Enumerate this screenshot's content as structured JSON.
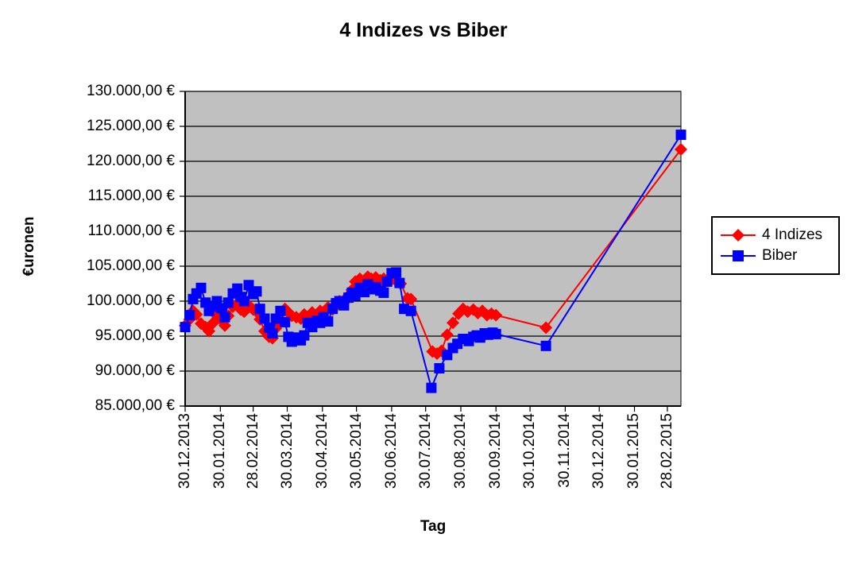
{
  "chart_data": {
    "type": "line",
    "title": "4 Indizes vs Biber",
    "xlabel": "Tag",
    "ylabel": "€uronen",
    "plot": {
      "background": "#c0c0c0",
      "gridlines": "horizontal",
      "gridline_color": "#000000"
    },
    "y_axis": {
      "min": 85000,
      "max": 130000,
      "step": 5000,
      "tick_labels": [
        "85.000,00 €",
        "90.000,00 €",
        "95.000,00 €",
        "100.000,00 €",
        "105.000,00 €",
        "110.000,00 €",
        "115.000,00 €",
        "120.000,00 €",
        "125.000,00 €",
        "130.000,00 €"
      ]
    },
    "x_axis": {
      "tick_labels": [
        "30.12.2013",
        "30.01.2014",
        "28.02.2014",
        "30.03.2014",
        "30.04.2014",
        "30.05.2014",
        "30.06.2014",
        "30.07.2014",
        "30.08.2014",
        "30.09.2014",
        "30.10.2014",
        "30.11.2014",
        "30.12.2014",
        "30.01.2015",
        "28.02.2015"
      ],
      "tick_day_offsets": [
        0,
        31,
        60,
        90,
        121,
        151,
        182,
        212,
        243,
        274,
        304,
        335,
        365,
        396,
        425
      ],
      "axis_max_day": 437
    },
    "legend": {
      "position": "right",
      "entries": [
        "4 Indizes",
        "Biber"
      ]
    },
    "series": [
      {
        "name": "4 Indizes",
        "color": "#ff0000",
        "marker": "diamond",
        "points": [
          [
            0,
            96500
          ],
          [
            4,
            97400
          ],
          [
            7,
            98600
          ],
          [
            10,
            98100
          ],
          [
            14,
            96800
          ],
          [
            18,
            96300
          ],
          [
            21,
            95700
          ],
          [
            24,
            96800
          ],
          [
            28,
            97900
          ],
          [
            32,
            97300
          ],
          [
            35,
            96500
          ],
          [
            38,
            97900
          ],
          [
            42,
            99200
          ],
          [
            46,
            99700
          ],
          [
            49,
            98800
          ],
          [
            52,
            98500
          ],
          [
            56,
            99400
          ],
          [
            60,
            98800
          ],
          [
            63,
            98500
          ],
          [
            66,
            97400
          ],
          [
            70,
            95700
          ],
          [
            74,
            94900
          ],
          [
            77,
            94700
          ],
          [
            80,
            96100
          ],
          [
            84,
            97200
          ],
          [
            88,
            98900
          ],
          [
            91,
            98400
          ],
          [
            94,
            97900
          ],
          [
            98,
            97700
          ],
          [
            102,
            97500
          ],
          [
            105,
            98100
          ],
          [
            108,
            97700
          ],
          [
            112,
            98400
          ],
          [
            116,
            98000
          ],
          [
            119,
            98600
          ],
          [
            122,
            98300
          ],
          [
            126,
            99100
          ],
          [
            130,
            98800
          ],
          [
            133,
            99300
          ],
          [
            136,
            100000
          ],
          [
            140,
            99800
          ],
          [
            144,
            100800
          ],
          [
            147,
            101600
          ],
          [
            150,
            102800
          ],
          [
            154,
            103200
          ],
          [
            158,
            103000
          ],
          [
            161,
            103500
          ],
          [
            164,
            103200
          ],
          [
            168,
            103400
          ],
          [
            172,
            103000
          ],
          [
            175,
            103200
          ],
          [
            178,
            102900
          ],
          [
            182,
            103100
          ],
          [
            186,
            102900
          ],
          [
            190,
            102500
          ],
          [
            196,
            100400
          ],
          [
            199,
            100300
          ],
          [
            218,
            92800
          ],
          [
            222,
            92500
          ],
          [
            226,
            92900
          ],
          [
            231,
            95200
          ],
          [
            236,
            96900
          ],
          [
            241,
            98200
          ],
          [
            245,
            98900
          ],
          [
            249,
            98500
          ],
          [
            254,
            98800
          ],
          [
            258,
            98300
          ],
          [
            262,
            98600
          ],
          [
            266,
            98000
          ],
          [
            270,
            98200
          ],
          [
            274,
            98000
          ],
          [
            318,
            96200
          ],
          [
            437,
            121700
          ]
        ]
      },
      {
        "name": "Biber",
        "color": "#0000ff",
        "marker": "square",
        "points": [
          [
            0,
            96300
          ],
          [
            4,
            98000
          ],
          [
            7,
            100300
          ],
          [
            10,
            101100
          ],
          [
            14,
            101900
          ],
          [
            18,
            99800
          ],
          [
            21,
            98600
          ],
          [
            24,
            99200
          ],
          [
            28,
            100000
          ],
          [
            32,
            99000
          ],
          [
            35,
            97700
          ],
          [
            38,
            99800
          ],
          [
            42,
            101100
          ],
          [
            46,
            101800
          ],
          [
            49,
            100600
          ],
          [
            52,
            100000
          ],
          [
            56,
            102300
          ],
          [
            60,
            101000
          ],
          [
            63,
            101400
          ],
          [
            66,
            98900
          ],
          [
            70,
            97500
          ],
          [
            74,
            96200
          ],
          [
            77,
            95400
          ],
          [
            80,
            97500
          ],
          [
            84,
            98600
          ],
          [
            88,
            97000
          ],
          [
            91,
            94900
          ],
          [
            94,
            94200
          ],
          [
            98,
            94800
          ],
          [
            102,
            94400
          ],
          [
            105,
            95100
          ],
          [
            108,
            96900
          ],
          [
            112,
            96300
          ],
          [
            116,
            97200
          ],
          [
            119,
            96900
          ],
          [
            122,
            97700
          ],
          [
            126,
            97100
          ],
          [
            130,
            98900
          ],
          [
            133,
            99700
          ],
          [
            136,
            100000
          ],
          [
            140,
            99400
          ],
          [
            144,
            100500
          ],
          [
            147,
            101200
          ],
          [
            150,
            100800
          ],
          [
            154,
            101900
          ],
          [
            158,
            101300
          ],
          [
            161,
            102400
          ],
          [
            164,
            101700
          ],
          [
            168,
            102000
          ],
          [
            172,
            101500
          ],
          [
            175,
            101200
          ],
          [
            178,
            102800
          ],
          [
            182,
            104000
          ],
          [
            186,
            104100
          ],
          [
            189,
            102600
          ],
          [
            193,
            98900
          ],
          [
            199,
            98600
          ],
          [
            217,
            87600
          ],
          [
            224,
            90400
          ],
          [
            231,
            92300
          ],
          [
            236,
            93300
          ],
          [
            240,
            93900
          ],
          [
            245,
            94600
          ],
          [
            250,
            94300
          ],
          [
            254,
            94900
          ],
          [
            257,
            95100
          ],
          [
            260,
            94800
          ],
          [
            264,
            95400
          ],
          [
            267,
            95200
          ],
          [
            271,
            95500
          ],
          [
            274,
            95300
          ],
          [
            318,
            93600
          ],
          [
            437,
            123800
          ]
        ]
      }
    ]
  }
}
